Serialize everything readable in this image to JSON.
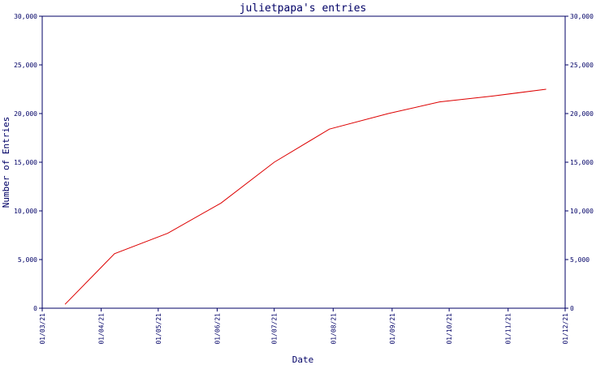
{
  "chart_data": {
    "type": "line",
    "title": "julietpapa's entries",
    "xlabel": "Date",
    "ylabel": "Number of Entries",
    "x_ticks": [
      "01/03/21",
      "01/04/21",
      "01/05/21",
      "01/06/21",
      "01/07/21",
      "01/08/21",
      "01/09/21",
      "01/10/21",
      "01/11/21",
      "01/12/21"
    ],
    "y_ticks": [
      "0",
      "5,000",
      "10,000",
      "15,000",
      "20,000",
      "25,000",
      "30,000"
    ],
    "ylim": [
      0,
      30000
    ],
    "xlim": [
      "2021-03-01",
      "2021-12-01"
    ],
    "grid": false,
    "y_axis_both_sides": true,
    "colors": {
      "line": "#dd0000",
      "axes": "#000066",
      "text": "#000066"
    },
    "series": [
      {
        "x": [
          "2021-03-13",
          "2021-04-08",
          "2021-05-06",
          "2021-06-03",
          "2021-07-01",
          "2021-07-30",
          "2021-08-30",
          "2021-09-26",
          "2021-10-24",
          "2021-11-21"
        ],
        "values": [
          400,
          5600,
          7700,
          10800,
          15000,
          18400,
          20000,
          21200,
          21800,
          22500
        ]
      }
    ]
  }
}
